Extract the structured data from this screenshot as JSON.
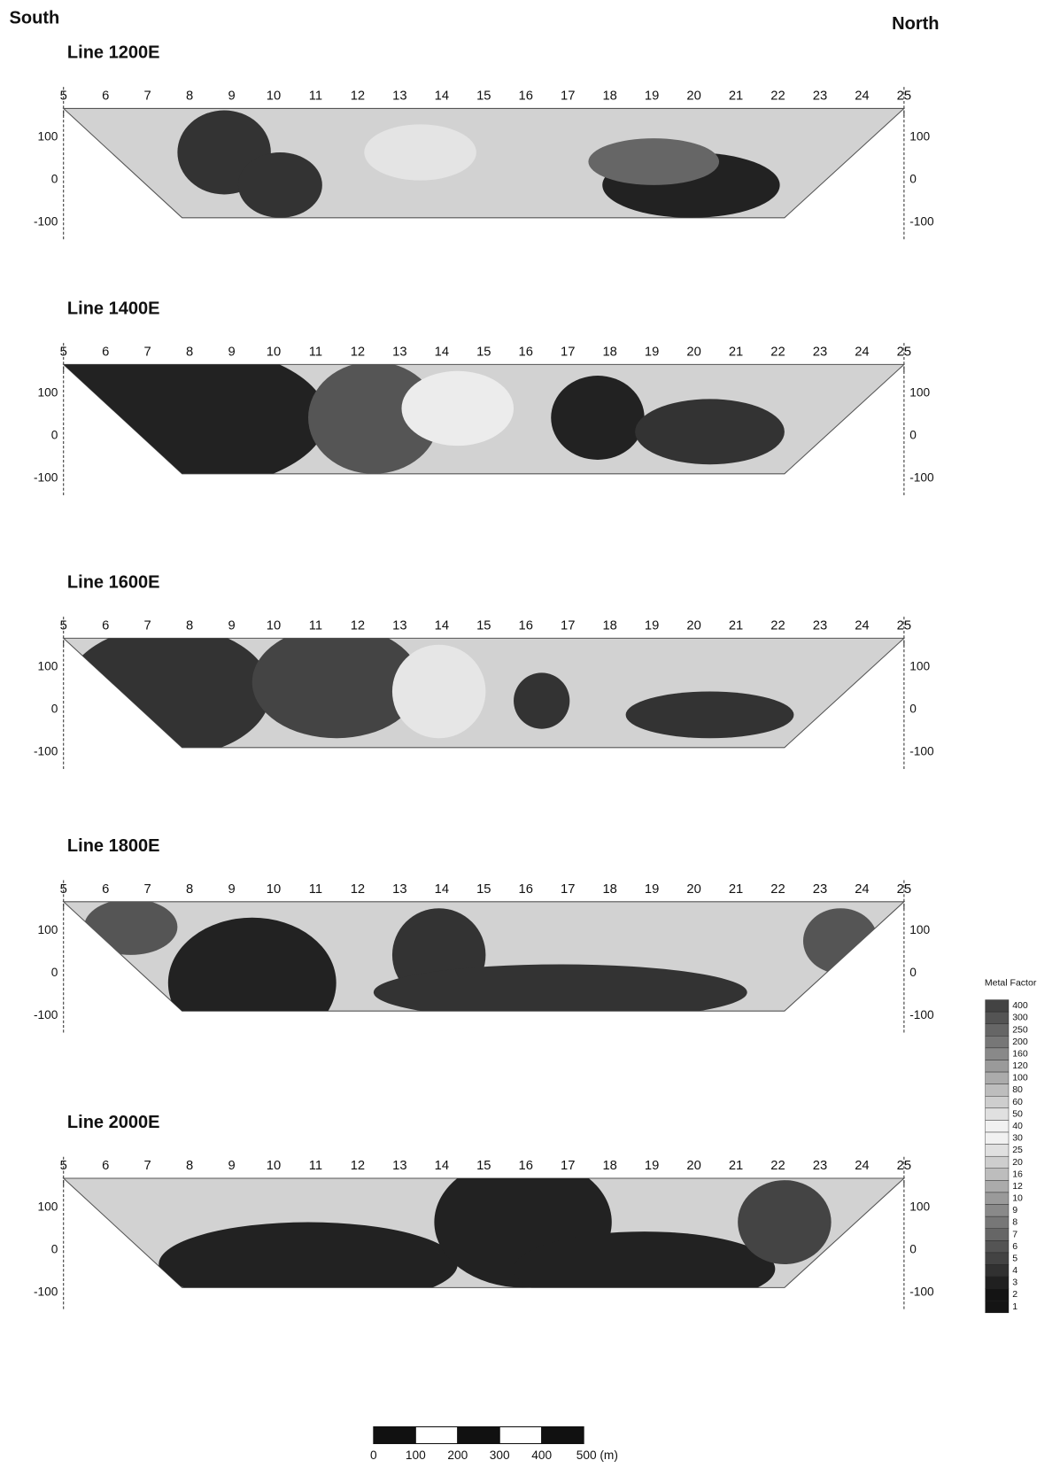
{
  "header": {
    "left": "South",
    "right": "North"
  },
  "sections": [
    {
      "title": "Line 1200E"
    },
    {
      "title": "Line 1400E"
    },
    {
      "title": "Line 1600E"
    },
    {
      "title": "Line 1800E"
    },
    {
      "title": "Line 2000E"
    }
  ],
  "stations": [
    "5",
    "6",
    "7",
    "8",
    "9",
    "10",
    "11",
    "12",
    "13",
    "14",
    "15",
    "16",
    "17",
    "18",
    "19",
    "20",
    "21",
    "22",
    "23",
    "24",
    "25"
  ],
  "depth_ticks": [
    "100",
    "0",
    "-100"
  ],
  "legend": {
    "title": "Metal Factor",
    "labels": [
      "400",
      "300",
      "250",
      "200",
      "160",
      "120",
      "100",
      "80",
      "60",
      "50",
      "40",
      "30",
      "25",
      "20",
      "16",
      "12",
      "10",
      "9",
      "8",
      "7",
      "6",
      "5",
      "4",
      "3",
      "2",
      "1"
    ]
  },
  "scale_bar": {
    "labels": [
      "0",
      "100",
      "200",
      "300",
      "400",
      "500 (m)"
    ]
  }
}
